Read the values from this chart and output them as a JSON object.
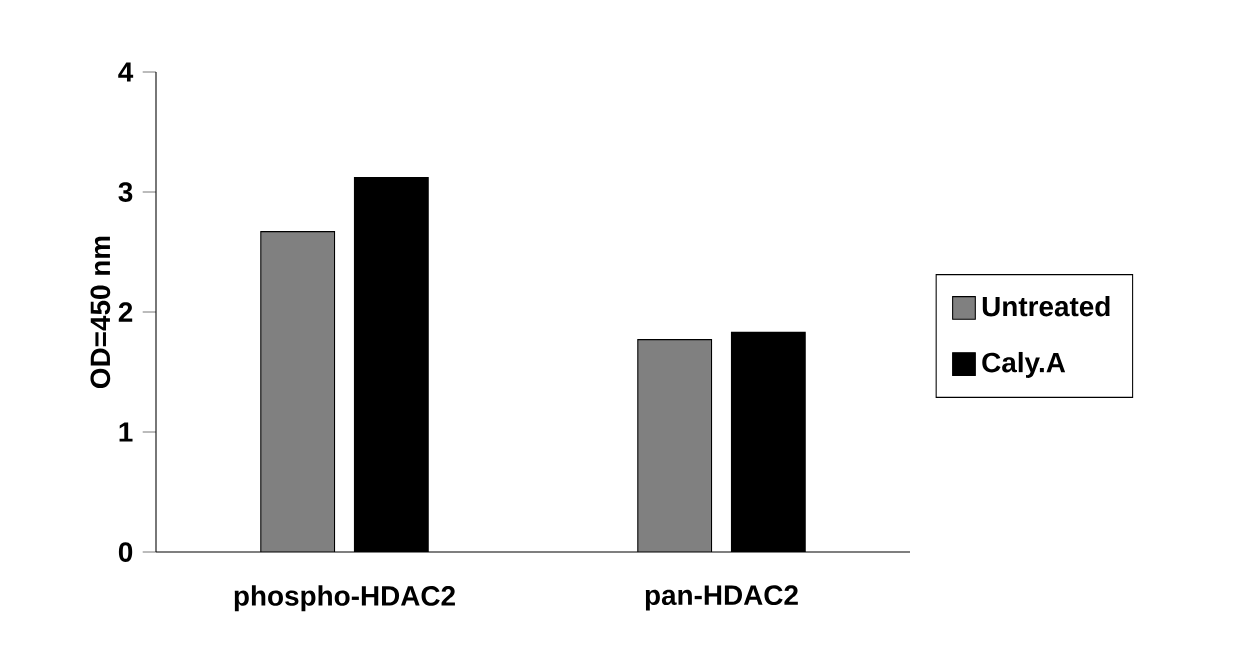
{
  "chart_data": {
    "type": "bar",
    "ylabel": "OD=450 nm",
    "categories": [
      "phospho-HDAC2",
      "pan-HDAC2"
    ],
    "series": [
      {
        "name": "Untreated",
        "color": "#808080",
        "values": [
          2.67,
          1.77
        ]
      },
      {
        "name": "Caly.A",
        "color": "#000000",
        "values": [
          3.12,
          1.83
        ]
      }
    ],
    "ylim": [
      0,
      4
    ],
    "yticks": [
      0,
      1,
      2,
      3,
      4
    ],
    "legend": "right"
  }
}
